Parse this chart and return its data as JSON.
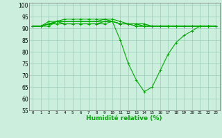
{
  "xlabel": "Humidité relative (%)",
  "background_color": "#cceedd",
  "grid_color": "#99ccbb",
  "line_color": "#00aa00",
  "marker": "+",
  "ylim": [
    55,
    101
  ],
  "xlim": [
    -0.5,
    23.5
  ],
  "yticks": [
    55,
    60,
    65,
    70,
    75,
    80,
    85,
    90,
    95,
    100
  ],
  "xticks": [
    0,
    1,
    2,
    3,
    4,
    5,
    6,
    7,
    8,
    9,
    10,
    11,
    12,
    13,
    14,
    15,
    16,
    17,
    18,
    19,
    20,
    21,
    22,
    23
  ],
  "xtick_labels": [
    "0",
    "1",
    "2",
    "3",
    "4",
    "5",
    "6",
    "7",
    "8",
    "9",
    "10",
    "11",
    "12",
    "13",
    "14",
    "15",
    "16",
    "17",
    "18",
    "19",
    "20",
    "21",
    "22",
    "23"
  ],
  "series": [
    [
      91,
      91,
      91,
      93,
      92,
      92,
      92,
      92,
      92,
      92,
      93,
      85,
      75,
      68,
      63,
      65,
      72,
      79,
      84,
      87,
      89,
      91,
      91,
      91
    ],
    [
      91,
      91,
      92,
      93,
      93,
      93,
      93,
      93,
      93,
      94,
      93,
      92,
      92,
      91,
      91,
      91,
      91,
      91,
      91,
      91,
      91,
      91,
      91,
      91
    ],
    [
      91,
      91,
      92,
      92,
      92,
      92,
      92,
      92,
      92,
      93,
      93,
      92,
      92,
      92,
      92,
      91,
      91,
      91,
      91,
      91,
      91,
      91,
      91,
      91
    ],
    [
      91,
      91,
      93,
      93,
      94,
      94,
      94,
      94,
      94,
      94,
      94,
      93,
      92,
      92,
      91,
      91,
      91,
      91,
      91,
      91,
      91,
      91,
      91,
      91
    ],
    [
      91,
      91,
      92,
      93,
      93,
      93,
      93,
      93,
      93,
      93,
      93,
      92,
      92,
      91,
      91,
      91,
      91,
      91,
      91,
      91,
      91,
      91,
      91,
      91
    ]
  ]
}
